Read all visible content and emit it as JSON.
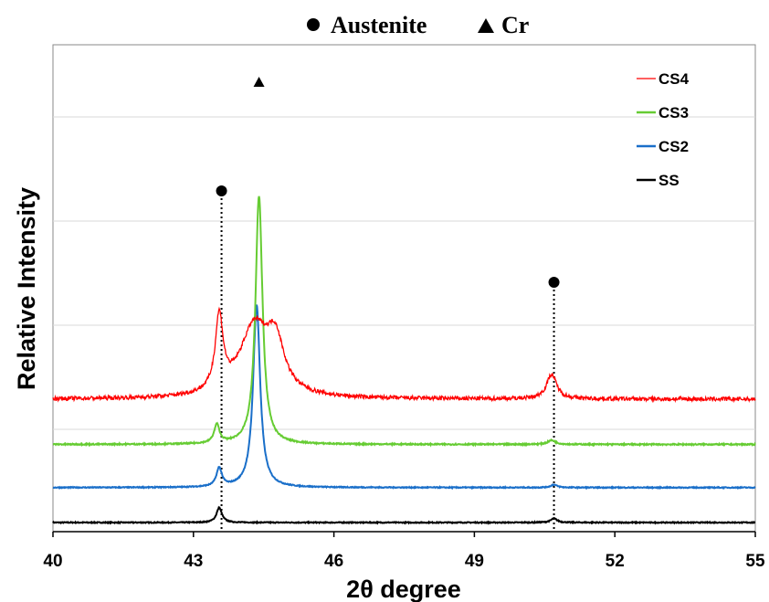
{
  "chart_data": {
    "type": "line",
    "title": "",
    "xlabel": "2θ degree",
    "ylabel": "Relative Intensity",
    "xlim": [
      40,
      55
    ],
    "ylim": [
      0,
      10
    ],
    "x_ticks": [
      "40",
      "43",
      "46",
      "49",
      "52",
      "55"
    ],
    "y_tick_labels_shown": false,
    "grid": "horizontal",
    "legend_position": "top-right",
    "marker_legend": [
      {
        "symbol": "circle",
        "label": "Austenite"
      },
      {
        "symbol": "triangle",
        "label": "Cr"
      }
    ],
    "annotations": [
      {
        "symbol": "circle",
        "x": 43.6
      },
      {
        "symbol": "triangle",
        "x": 44.4
      },
      {
        "symbol": "circle",
        "x": 50.7
      }
    ],
    "series": [
      {
        "name": "CS4",
        "color": "#ff0000",
        "baseline": 3.0,
        "noise": 0.05,
        "peaks": [
          {
            "x": 43.55,
            "height": 1.8,
            "width": 0.1
          },
          {
            "x": 44.3,
            "height": 1.7,
            "width": 0.38
          },
          {
            "x": 44.75,
            "height": 1.15,
            "width": 0.22
          },
          {
            "x": 50.65,
            "height": 0.6,
            "width": 0.13
          }
        ]
      },
      {
        "name": "CS3",
        "color": "#66cc33",
        "baseline": 1.9,
        "noise": 0.015,
        "peaks": [
          {
            "x": 43.5,
            "height": 0.45,
            "width": 0.07
          },
          {
            "x": 44.4,
            "height": 6.05,
            "width": 0.09
          },
          {
            "x": 50.65,
            "height": 0.1,
            "width": 0.1
          }
        ]
      },
      {
        "name": "CS2",
        "color": "#1a6fc9",
        "baseline": 0.85,
        "noise": 0.012,
        "peaks": [
          {
            "x": 43.55,
            "height": 0.45,
            "width": 0.07
          },
          {
            "x": 44.35,
            "height": 4.45,
            "width": 0.09
          },
          {
            "x": 50.7,
            "height": 0.07,
            "width": 0.08
          }
        ]
      },
      {
        "name": "SS",
        "color": "#000000",
        "baseline": 0.0,
        "noise": 0.012,
        "peaks": [
          {
            "x": 43.55,
            "height": 0.36,
            "width": 0.07
          },
          {
            "x": 50.7,
            "height": 0.1,
            "width": 0.08
          }
        ]
      }
    ]
  }
}
